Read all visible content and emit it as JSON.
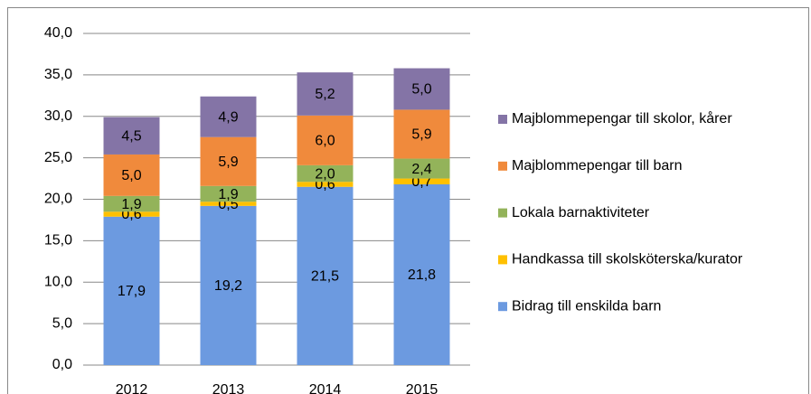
{
  "chart_data": {
    "type": "stacked_bar",
    "categories": [
      "2012",
      "2013",
      "2014",
      "2015"
    ],
    "series": [
      {
        "name": "Bidrag till enskilda barn",
        "color": "#6c9ae0",
        "values": [
          17.9,
          19.2,
          21.5,
          21.8
        ],
        "value_labels": [
          "17,9",
          "19,2",
          "21,5",
          "21,8"
        ]
      },
      {
        "name": "Handkassa till skolsköterska/kurator",
        "color": "#ffc000",
        "values": [
          0.6,
          0.5,
          0.6,
          0.7
        ],
        "value_labels": [
          "0,6",
          "0,5",
          "0,6",
          "0,7"
        ]
      },
      {
        "name": "Lokala barnaktiviteter",
        "color": "#93b35a",
        "values": [
          1.9,
          1.9,
          2.0,
          2.4
        ],
        "value_labels": [
          "1,9",
          "1,9",
          "2,0",
          "2,4"
        ]
      },
      {
        "name": "Majblommepengar till barn",
        "color": "#f08a3c",
        "values": [
          5.0,
          5.9,
          6.0,
          5.9
        ],
        "value_labels": [
          "5,0",
          "5,9",
          "6,0",
          "5,9"
        ]
      },
      {
        "name": "Majblommepengar till skolor, kårer",
        "color": "#8474a6",
        "values": [
          4.5,
          4.9,
          5.2,
          5.0
        ],
        "value_labels": [
          "4,5",
          "4,9",
          "5,2",
          "5,0"
        ]
      }
    ],
    "ylim": [
      0,
      40
    ],
    "yticks": [
      {
        "value": 0,
        "label": "0,0"
      },
      {
        "value": 5,
        "label": "5,0"
      },
      {
        "value": 10,
        "label": "10,0"
      },
      {
        "value": 15,
        "label": "15,0"
      },
      {
        "value": 20,
        "label": "20,0"
      },
      {
        "value": 25,
        "label": "25,0"
      },
      {
        "value": 30,
        "label": "30,0"
      },
      {
        "value": 35,
        "label": "35,0"
      },
      {
        "value": 40,
        "label": "40,0"
      }
    ],
    "grid": true
  }
}
